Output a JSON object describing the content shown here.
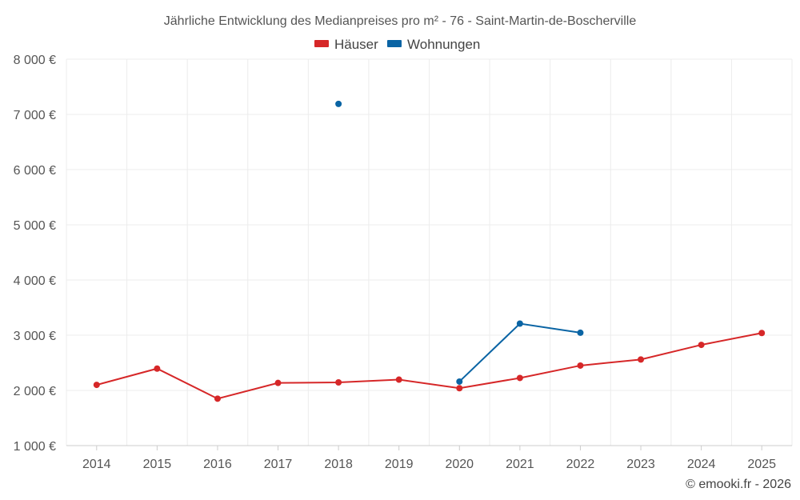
{
  "chart_data": {
    "type": "line",
    "title": "Jährliche Entwicklung des Medianpreises pro m² - 76 - Saint-Martin-de-Boscherville",
    "categories": [
      "2014",
      "2015",
      "2016",
      "2017",
      "2018",
      "2019",
      "2020",
      "2021",
      "2022",
      "2023",
      "2024",
      "2025"
    ],
    "ylim": [
      1000,
      8000
    ],
    "yticks": [
      1000,
      2000,
      3000,
      4000,
      5000,
      6000,
      7000,
      8000
    ],
    "ytick_labels": [
      "1 000 €",
      "2 000 €",
      "3 000 €",
      "4 000 €",
      "5 000 €",
      "6 000 €",
      "7 000 €",
      "8 000 €"
    ],
    "grid": true,
    "legend_position": "top-center",
    "series": [
      {
        "name": "Häuser",
        "color": "#d62728",
        "values": [
          2100,
          2395,
          1850,
          2135,
          2145,
          2195,
          2040,
          2225,
          2450,
          2560,
          2825,
          3040
        ]
      },
      {
        "name": "Wohnungen",
        "color": "#0a64a4",
        "values": [
          null,
          null,
          null,
          null,
          7190,
          null,
          2160,
          3210,
          3045,
          null,
          null,
          null
        ]
      }
    ]
  },
  "credit": "© emooki.fr - 2026"
}
